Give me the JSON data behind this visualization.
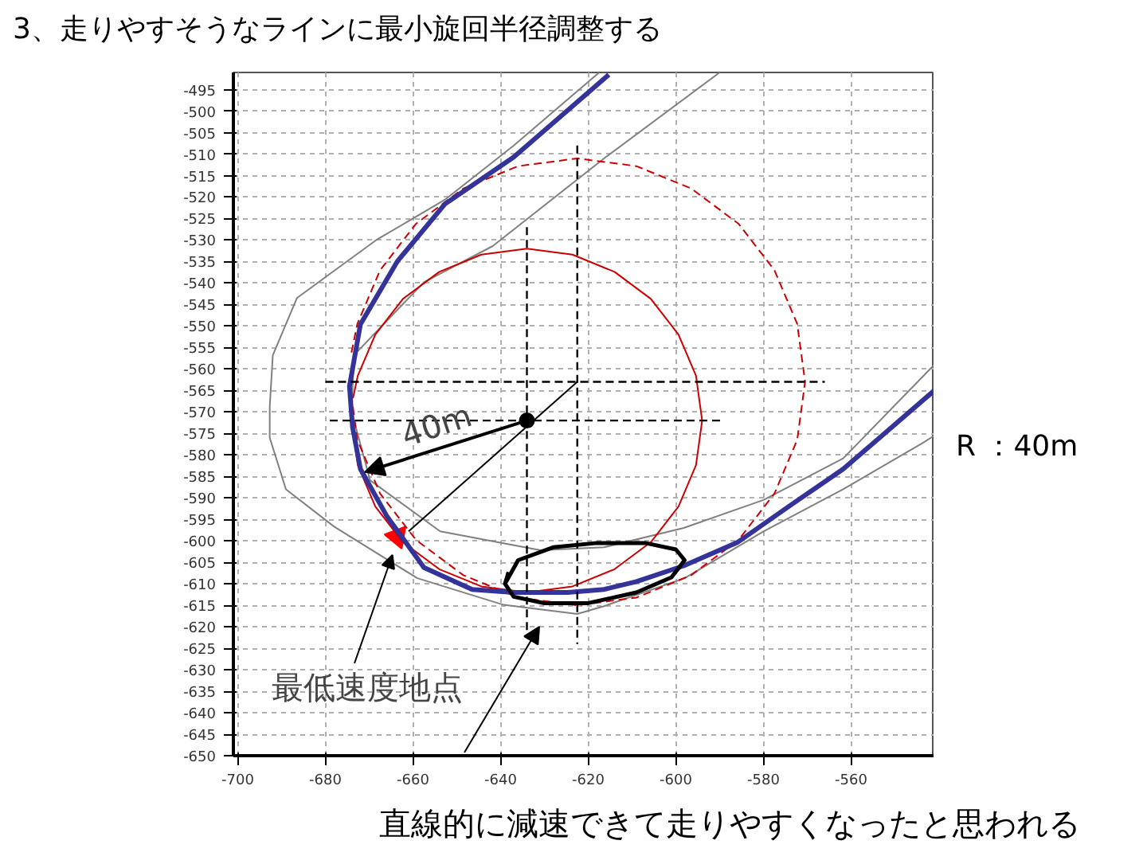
{
  "chart_data": {
    "type": "line",
    "title": "3、走りやすそうなラインに最小旋回半径調整する",
    "xlim": [
      -701,
      -541
    ],
    "ylim": [
      -650,
      -491
    ],
    "xticks": [
      -700,
      -680,
      -660,
      -640,
      -620,
      -600,
      -580,
      -560
    ],
    "yticks": [
      -650,
      -645,
      -640,
      -635,
      -630,
      -625,
      -620,
      -615,
      -610,
      -605,
      -600,
      -595,
      -590,
      -585,
      -580,
      -575,
      -570,
      -565,
      -560,
      -555,
      -550,
      -545,
      -540,
      -535,
      -530,
      -525,
      -520,
      -515,
      -510,
      -505,
      -500,
      -495
    ],
    "grid": true,
    "series": [
      {
        "color": "#808080",
        "line_style": "solid",
        "x": [
          -617.5,
          -637,
          -652.7,
          -668.4,
          -686.5,
          -692,
          -692.7,
          -692.7,
          -689,
          -678,
          -659,
          -639.3,
          -622.5,
          -616.4,
          -598,
          -580,
          -561.8,
          -543.6,
          -541
        ],
        "values": [
          -491,
          -508,
          -520.6,
          -530,
          -543.5,
          -556.8,
          -568.8,
          -576,
          -588,
          -596.7,
          -608.7,
          -614.9,
          -617,
          -615.2,
          -608.7,
          -597.8,
          -588,
          -577.2,
          -575.5
        ]
      },
      {
        "color": "#808080",
        "line_style": "solid",
        "x": [
          -590,
          -616,
          -641.8,
          -657.5,
          -673.5,
          -674,
          -669.8,
          -653.8,
          -630.9,
          -616.4,
          -598.2,
          -580,
          -561.8,
          -541
        ],
        "values": [
          -491,
          -510.7,
          -531.4,
          -539.8,
          -556.8,
          -570,
          -585.9,
          -597.8,
          -602.2,
          -601.5,
          -597,
          -590.5,
          -580.8,
          -559
        ]
      },
      {
        "color": "#cc0000",
        "line_style": "solid",
        "x": [
          -674,
          -672.6,
          -668.6,
          -662.3,
          -654,
          -644.4,
          -634,
          -623.6,
          -614,
          -605.7,
          -599.4,
          -595.4,
          -594,
          -595.4,
          -599.4,
          -605.7,
          -614,
          -623.6,
          -634,
          -644.4,
          -654,
          -662.3,
          -668.6,
          -672.6,
          -673.7
        ],
        "values": [
          -572,
          -582.4,
          -592,
          -600.3,
          -606.6,
          -610.6,
          -612,
          -610.6,
          -606.6,
          -600.3,
          -592,
          -582.4,
          -572,
          -561.6,
          -552,
          -543.7,
          -537.4,
          -533.4,
          -532,
          -533.4,
          -537.4,
          -543.7,
          -552,
          -561.6,
          -566.8
        ]
      },
      {
        "color": "#cc0000",
        "line_style": "dashed",
        "x": [
          -674.5,
          -672.7,
          -667.5,
          -659.3,
          -648.5,
          -636,
          -622.5,
          -609,
          -596.5,
          -585.7,
          -577.5,
          -572.3,
          -570.5,
          -572.3,
          -577.5,
          -585.7,
          -596.5,
          -609,
          -622.5,
          -636,
          -648.5,
          -659.3,
          -667.5,
          -672.7,
          -674.05
        ],
        "values": [
          -563,
          -576.5,
          -589,
          -599.8,
          -608,
          -613.2,
          -615,
          -613.2,
          -608,
          -599.8,
          -589,
          -576.5,
          -563,
          -549.5,
          -537,
          -526.2,
          -518,
          -512.8,
          -511,
          -512.8,
          -518,
          -526.2,
          -537,
          -549.5,
          -556.2
        ]
      },
      {
        "color": "#333399",
        "line_style": "solid",
        "x": [
          -615.3,
          -637,
          -652.7,
          -663.6,
          -672,
          -674.5,
          -673.8,
          -672,
          -666,
          -657.5,
          -646.5,
          -637,
          -624.7,
          -616.4,
          -609,
          -598.2,
          -586,
          -573.8,
          -561.8,
          -553.5,
          -541
        ],
        "values": [
          -491.5,
          -510.7,
          -521.6,
          -535,
          -549.6,
          -564,
          -573.5,
          -583.3,
          -594.2,
          -606.2,
          -611.3,
          -612,
          -612,
          -611.3,
          -609.5,
          -605.8,
          -600.4,
          -591.7,
          -583.3,
          -576,
          -565
        ]
      },
      {
        "color": "#000000",
        "line_style": "dashed",
        "x": [
          -680,
          -566
        ],
        "values": [
          -563,
          -563
        ]
      },
      {
        "color": "#000000",
        "line_style": "dashed",
        "x": [
          -622.5,
          -622.5
        ],
        "values": [
          -508,
          -624
        ]
      },
      {
        "color": "#000000",
        "line_style": "dashed",
        "x": [
          -679,
          -589
        ],
        "values": [
          -572,
          -572
        ]
      },
      {
        "color": "#000000",
        "line_style": "dashed",
        "x": [
          -634,
          -634
        ],
        "values": [
          -527,
          -622
        ]
      },
      {
        "color": "#000000",
        "line_style": "solid",
        "x": [
          -639,
          -636,
          -628,
          -618,
          -607,
          -600,
          -598,
          -601,
          -609,
          -620,
          -630,
          -637,
          -639,
          -638.2
        ],
        "values": [
          -610,
          -604.5,
          -601.5,
          -600.5,
          -600.5,
          -602,
          -604.5,
          -608.5,
          -612,
          -614.5,
          -614.5,
          -613,
          -610,
          -607.3
        ]
      },
      {
        "color": "#000000",
        "line_style": "solid",
        "x": [
          -622.5,
          -661
        ],
        "values": [
          -563,
          -597.8
        ]
      },
      {
        "type": "scatter",
        "color": "#000000",
        "marker": "circle",
        "x": [
          -634
        ],
        "values": [
          -572
        ]
      },
      {
        "type": "scatter",
        "color": "#ff0000",
        "marker": "triangle",
        "x": [
          -663.6
        ],
        "values": [
          -599
        ]
      }
    ],
    "annotations": [
      "R ：40m",
      {
        "text": "40m",
        "x": -671,
        "y": -584
      },
      {
        "text": "最低速度地点",
        "x": -664.7,
        "y": -603.3
      },
      "直線的に減速できて走りやすくなったと思われる"
    ]
  }
}
